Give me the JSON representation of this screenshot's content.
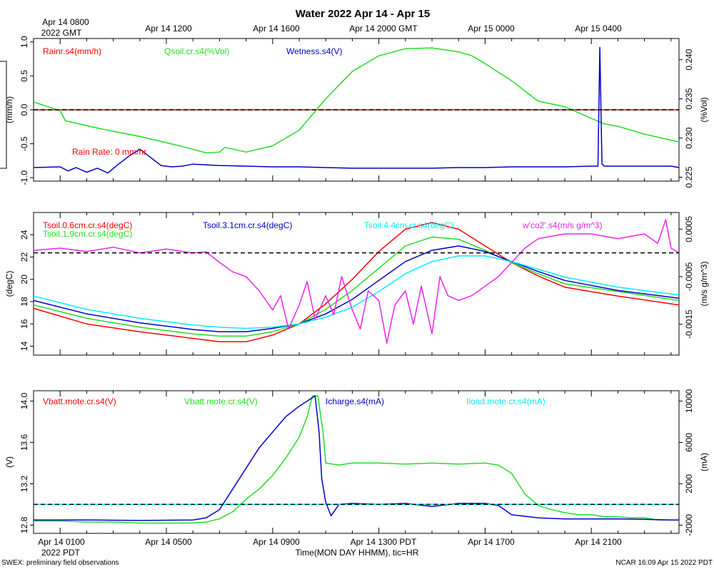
{
  "title": "Water 2022 Apr 14 - Apr 15",
  "top_axis": {
    "labels": [
      "Apr 14 0800",
      "Apr 14 1200",
      "Apr 14 1600",
      "Apr 14 2000 GMT",
      "Apr 15 0000",
      "Apr 15 0400"
    ],
    "sub_label": "2022 GMT"
  },
  "bottom_axis": {
    "labels": [
      "Apr 14 0100",
      "Apr 14 0500",
      "Apr 14 0900",
      "Apr 14 1300 PDT",
      "Apr 14 1700",
      "Apr 14 2100"
    ],
    "sub_label": "2022 PDT",
    "xlabel": "Time(MON DAY HHMM), tic=HR"
  },
  "footer": {
    "left": "SWEX: preliminary field observations",
    "right": "NCAR 16:09 Apr 15 2022 PDT"
  },
  "colors": {
    "red": "#ff0000",
    "green": "#22dd22",
    "blue": "#0000cc",
    "cyan": "#00eeff",
    "magenta": "#ee22ee",
    "black": "#000000"
  },
  "chart_data": [
    {
      "type": "line",
      "panel": "Rain / soil moisture / wetness",
      "x_unit": "hours since Apr 14 0000 PDT",
      "xlim": [
        0,
        24.3
      ],
      "left_axis": {
        "label": "(mm/h)",
        "ylim": [
          -1.05,
          1.05
        ],
        "ticks": [
          -1.0,
          -0.5,
          0.0,
          0.5,
          1.0
        ],
        "tick_labels": [
          "-1.0",
          "-0.5",
          "0.0",
          "0.5",
          "1.0"
        ]
      },
      "right_axis": {
        "label": "(%Vol)",
        "ylim": [
          0.2245,
          0.2427
        ],
        "ticks": [
          0.225,
          0.23,
          0.235,
          0.24
        ],
        "tick_labels": [
          "0.225",
          "0.230",
          "0.235",
          "0.240"
        ]
      },
      "legend": [
        {
          "name": "Rainr.s4(mm/h)",
          "color": "#ff0000"
        },
        {
          "name": "Qsoil.cr.s4(%Vol)",
          "color": "#22dd22"
        },
        {
          "name": "Wetness.s4(V)",
          "color": "#0000cc"
        }
      ],
      "annotation": "Rain Rate: 0 mm/hr",
      "reference_line": {
        "axis": "left",
        "value": 0.0
      },
      "series": [
        {
          "name": "Rainr.s4",
          "axis": "left",
          "color": "#ff0000",
          "x": [
            0,
            24.3
          ],
          "y": [
            0.0,
            0.0
          ]
        },
        {
          "name": "Qsoil.cr.s4",
          "axis": "right",
          "color": "#22dd22",
          "x": [
            0,
            0.8,
            1.0,
            1.2,
            2.5,
            4.0,
            5.5,
            6.5,
            7.0,
            7.2,
            8.0,
            9.0,
            10.0,
            11.0,
            12.0,
            13.0,
            14.0,
            15.0,
            16.0,
            16.5,
            17.0,
            18.0,
            19.0,
            20.0,
            21.0,
            21.5,
            22.0,
            23.0,
            24.3
          ],
          "y": [
            0.2346,
            0.2337,
            0.2335,
            0.2322,
            0.2312,
            0.2302,
            0.229,
            0.2281,
            0.2282,
            0.2288,
            0.2282,
            0.229,
            0.231,
            0.235,
            0.2385,
            0.2405,
            0.2414,
            0.2415,
            0.241,
            0.2405,
            0.2395,
            0.2373,
            0.2347,
            0.234,
            0.2325,
            0.2318,
            0.2315,
            0.2305,
            0.2295
          ]
        },
        {
          "name": "Wetness.s4",
          "axis": "left",
          "color": "#0000cc",
          "x": [
            0,
            1.0,
            1.3,
            1.6,
            2.0,
            2.4,
            2.8,
            3.2,
            3.6,
            4.0,
            4.4,
            4.8,
            5.2,
            5.6,
            6.0,
            7.0,
            8.0,
            9.0,
            10.0,
            11.0,
            12.0,
            13.0,
            14.0,
            15.0,
            16.0,
            17.0,
            18.0,
            19.0,
            20.0,
            21.0,
            21.25,
            21.32,
            21.4,
            21.5,
            22.0,
            23.0,
            24.0,
            24.3
          ],
          "y": [
            -0.85,
            -0.84,
            -0.9,
            -0.85,
            -0.92,
            -0.86,
            -0.93,
            -0.8,
            -0.68,
            -0.58,
            -0.7,
            -0.82,
            -0.84,
            -0.83,
            -0.8,
            -0.82,
            -0.83,
            -0.84,
            -0.84,
            -0.85,
            -0.86,
            -0.86,
            -0.86,
            -0.86,
            -0.85,
            -0.85,
            -0.84,
            -0.84,
            -0.84,
            -0.83,
            -0.83,
            0.92,
            -0.8,
            -0.83,
            -0.83,
            -0.83,
            -0.83,
            -0.85
          ]
        }
      ]
    },
    {
      "type": "line",
      "panel": "Soil temperatures / CO2 flux",
      "x_unit": "hours since Apr 14 0000 PDT",
      "xlim": [
        0,
        24.3
      ],
      "left_axis": {
        "label": "(degC)",
        "ylim": [
          13.2,
          26.0
        ],
        "ticks": [
          14,
          16,
          18,
          20,
          22,
          24
        ],
        "tick_labels": [
          "14",
          "16",
          "18",
          "20",
          "22",
          "24"
        ]
      },
      "right_axis": {
        "label": "(m/s g/m^3)",
        "ylim": [
          -0.00215,
          0.00085
        ],
        "ticks": [
          -0.0015,
          -0.0005,
          0.0005
        ],
        "tick_labels": [
          "-0.0015",
          "-0.0005",
          "0.0005"
        ]
      },
      "legend": [
        {
          "name": "Tsoil.0.6cm.cr.s4(degC)",
          "color": "#ff0000"
        },
        {
          "name": "Tsoil.1.9cm.cr.s4(degC)",
          "color": "#22dd22"
        },
        {
          "name": "Tsoil.3.1cm.cr.s4(degC)",
          "color": "#0000cc"
        },
        {
          "name": "Tsoil.4.4cm.cr.s4(degC)",
          "color": "#00eeff"
        },
        {
          "name": "w'co2'.s4(m/s g/m^3)",
          "color": "#ee22ee"
        }
      ],
      "reference_line": {
        "axis": "right",
        "value": 0.0
      },
      "series": [
        {
          "name": "Tsoil.0.6cm.cr.s4",
          "axis": "left",
          "color": "#ff0000",
          "x": [
            0,
            2,
            4,
            6,
            7,
            8,
            9,
            10,
            11,
            12,
            13,
            14,
            15,
            16,
            17,
            18,
            19,
            20,
            22,
            24.3
          ],
          "y": [
            17.4,
            16.0,
            15.3,
            14.7,
            14.4,
            14.4,
            15.0,
            16.0,
            17.8,
            20.0,
            22.5,
            24.5,
            25.1,
            24.5,
            23.0,
            21.5,
            20.3,
            19.3,
            18.5,
            17.7
          ]
        },
        {
          "name": "Tsoil.1.9cm.cr.s4",
          "axis": "left",
          "color": "#22dd22",
          "x": [
            0,
            2,
            4,
            6,
            7,
            8,
            9,
            10,
            11,
            12,
            13,
            14,
            15,
            16,
            17,
            18,
            19,
            20,
            22,
            24.3
          ],
          "y": [
            17.7,
            16.5,
            15.7,
            15.1,
            14.9,
            14.9,
            15.3,
            16.0,
            17.3,
            19.0,
            21.0,
            23.0,
            23.8,
            23.6,
            22.6,
            21.5,
            20.5,
            19.6,
            18.9,
            18.1
          ]
        },
        {
          "name": "Tsoil.3.1cm.cr.s4",
          "axis": "left",
          "color": "#0000cc",
          "x": [
            0,
            2,
            4,
            6,
            7,
            8,
            9,
            10,
            11,
            12,
            13,
            14,
            15,
            16,
            17,
            18,
            19,
            20,
            22,
            24.3
          ],
          "y": [
            18.1,
            16.9,
            16.1,
            15.5,
            15.3,
            15.3,
            15.6,
            16.0,
            16.9,
            18.2,
            19.9,
            21.6,
            22.6,
            23.0,
            22.5,
            21.6,
            20.7,
            19.9,
            19.0,
            18.3
          ]
        },
        {
          "name": "Tsoil.4.4cm.cr.s4",
          "axis": "left",
          "color": "#00eeff",
          "x": [
            0,
            2,
            4,
            6,
            7,
            8,
            9,
            10,
            11,
            12,
            13,
            14,
            15,
            16,
            17,
            18,
            19,
            20,
            22,
            24.3
          ],
          "y": [
            18.5,
            17.3,
            16.5,
            15.9,
            15.7,
            15.6,
            15.7,
            16.0,
            16.6,
            17.5,
            18.9,
            20.5,
            21.6,
            22.1,
            22.1,
            21.6,
            20.9,
            20.2,
            19.3,
            18.6
          ]
        },
        {
          "name": "w'co2'.s4",
          "axis": "right",
          "color": "#ee22ee",
          "x": [
            0,
            1,
            2,
            3,
            4,
            5,
            6,
            6.5,
            7.0,
            7.5,
            8.0,
            8.5,
            9.0,
            9.3,
            9.6,
            10.0,
            10.3,
            10.6,
            11.0,
            11.3,
            11.6,
            12.0,
            12.3,
            12.6,
            13.0,
            13.3,
            13.6,
            14.0,
            14.3,
            14.6,
            15.0,
            15.3,
            15.6,
            16.0,
            16.5,
            17.0,
            17.5,
            18.0,
            18.5,
            19.0,
            20.0,
            21.0,
            22.0,
            23.0,
            23.5,
            23.8,
            24.0,
            24.3
          ],
          "y": [
            5e-05,
            0.0001,
            3e-05,
            0.00012,
            0.0,
            8e-05,
            0.0,
            2e-05,
            -0.0002,
            -0.0004,
            -0.0005,
            -0.0008,
            -0.0012,
            -0.0009,
            -0.0016,
            -0.0011,
            -0.0006,
            -0.0014,
            -0.0009,
            -0.0013,
            -0.0005,
            -0.0012,
            -0.0016,
            -0.0008,
            -0.001,
            -0.0019,
            -0.0011,
            -0.0008,
            -0.0015,
            -0.0007,
            -0.0017,
            -0.0005,
            -0.0009,
            -0.001,
            -0.0009,
            -0.0007,
            -0.0005,
            -0.0002,
            0.0001,
            0.0003,
            0.0004,
            0.0004,
            0.0003,
            0.0004,
            0.0002,
            0.0007,
            0.0001,
            0.0
          ]
        }
      ]
    },
    {
      "type": "line",
      "panel": "Mote battery / charge / load",
      "x_unit": "hours since Apr 14 0000 PDT",
      "xlim": [
        0,
        24.3
      ],
      "left_axis": {
        "label": "(V)",
        "ylim": [
          12.72,
          14.1
        ],
        "ticks": [
          12.8,
          13.2,
          13.6,
          14.0
        ],
        "tick_labels": [
          "12.8",
          "13.2",
          "13.6",
          "14.0"
        ]
      },
      "right_axis": {
        "label": "(mA)",
        "ylim": [
          -2800,
          11000
        ],
        "ticks": [
          -2000,
          2000,
          6000,
          10000
        ],
        "tick_labels": [
          "-2000",
          "2000",
          "6000",
          "10000"
        ]
      },
      "legend": [
        {
          "name": "Vbatt.mote.cr.s4(V)",
          "color": "#ff0000"
        },
        {
          "name": "Vbatt.mote.cr.s4(V)",
          "color": "#22dd22"
        },
        {
          "name": "Icharge.s4(mA)",
          "color": "#0000cc"
        },
        {
          "name": "Iload.mote.cr.s4(mA)",
          "color": "#00eeff"
        }
      ],
      "reference_line": {
        "axis": "right",
        "value": 0
      },
      "series": [
        {
          "name": "Vbatt.mote.cr.s4",
          "axis": "left",
          "color": "#22dd22",
          "x": [
            0,
            1,
            2,
            3,
            4,
            5,
            6,
            6.5,
            7.0,
            7.5,
            8.0,
            8.5,
            9.0,
            9.5,
            10.0,
            10.3,
            10.5,
            10.7,
            10.9,
            11.0,
            11.5,
            12.0,
            13.0,
            14.0,
            15.0,
            16.0,
            17.0,
            17.5,
            18.0,
            18.5,
            19.0,
            19.5,
            20.0,
            20.5,
            21.0,
            21.5,
            22.0,
            22.5,
            23.0,
            23.5,
            24.0,
            24.3
          ],
          "y": [
            12.84,
            12.84,
            12.83,
            12.83,
            12.82,
            12.82,
            12.82,
            12.83,
            12.86,
            12.93,
            13.05,
            13.15,
            13.28,
            13.45,
            13.65,
            13.85,
            14.05,
            14.05,
            13.7,
            13.4,
            13.38,
            13.4,
            13.4,
            13.39,
            13.4,
            13.39,
            13.4,
            13.38,
            13.3,
            13.1,
            12.99,
            12.95,
            12.92,
            12.9,
            12.9,
            12.88,
            12.88,
            12.87,
            12.87,
            12.85,
            12.85,
            12.85
          ]
        },
        {
          "name": "Icharge.s4",
          "axis": "right",
          "color": "#0000cc",
          "x": [
            0,
            2,
            4,
            6,
            6.5,
            7.0,
            7.5,
            8.0,
            8.5,
            9.0,
            9.5,
            10.0,
            10.3,
            10.6,
            10.75,
            10.85,
            11.0,
            11.2,
            11.5,
            12.0,
            13.0,
            14.0,
            15.0,
            16.0,
            17.0,
            17.5,
            18.0,
            19.0,
            20.0,
            21.0,
            22.0,
            23.0,
            24.0,
            24.3
          ],
          "y": [
            -1500,
            -1500,
            -1550,
            -1500,
            -1300,
            -500,
            1500,
            3500,
            5500,
            7000,
            8500,
            9500,
            10000,
            10500,
            7000,
            2500,
            200,
            -1100,
            0,
            100,
            0,
            100,
            -200,
            100,
            100,
            -100,
            -1000,
            -1300,
            -1400,
            -1400,
            -1400,
            -1450,
            -1500,
            -1500
          ]
        },
        {
          "name": "Iload.mote.cr.s4",
          "axis": "right",
          "color": "#00eeff",
          "x": [
            0,
            24.3
          ],
          "y": [
            0,
            0
          ]
        },
        {
          "name": "Vbatt.mote.cr.s4 (red)",
          "axis": "left",
          "color": "#ff0000",
          "x": [],
          "y": []
        }
      ]
    }
  ]
}
